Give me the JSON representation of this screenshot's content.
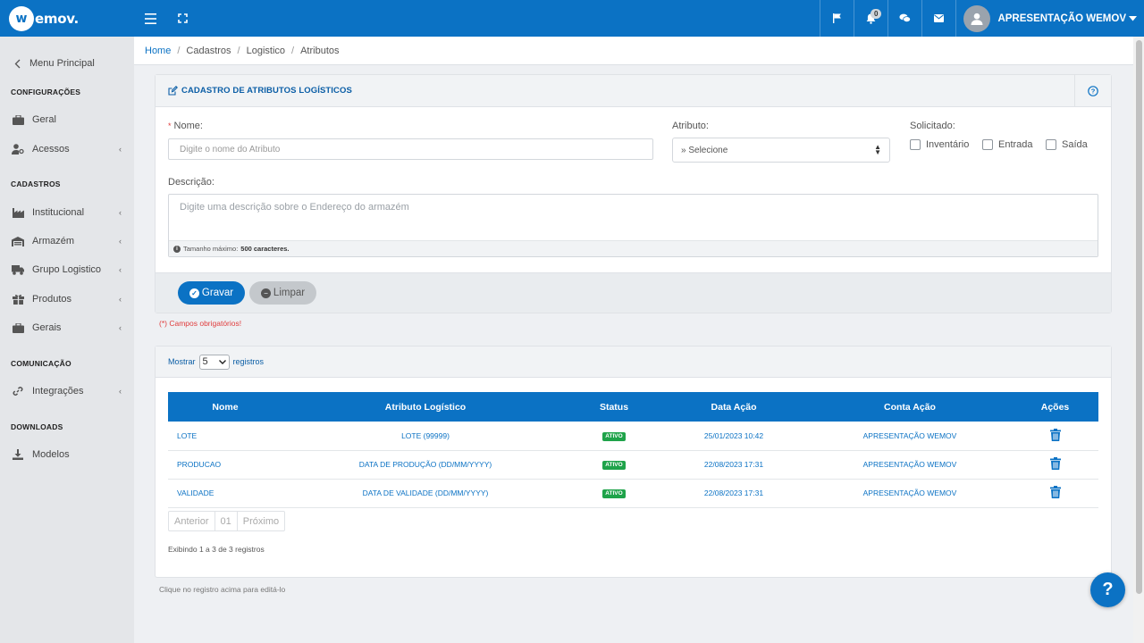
{
  "brand": {
    "logo_letter": "w",
    "logo_text": "emov."
  },
  "topbar": {
    "notifications_count": "0",
    "user_name": "APRESENTAÇÃO WEMOV",
    "icons": [
      "hamburger-icon",
      "expand-icon",
      "flag-icon",
      "bell-icon",
      "chat-icon",
      "envelope-icon",
      "user-icon",
      "caret-down-icon"
    ]
  },
  "sidebar": {
    "menu_principal": "Menu Principal",
    "sections": {
      "configuracoes": "CONFIGURAÇÕES",
      "cadastros": "CADASTROS",
      "comunicacao": "COMUNICAÇÃO",
      "downloads": "DOWNLOADS"
    },
    "items": {
      "geral": "Geral",
      "acessos": "Acessos",
      "institucional": "Institucional",
      "armazem": "Armazém",
      "grupo_logistico": "Grupo Logistico",
      "produtos": "Produtos",
      "gerais": "Gerais",
      "integracoes": "Integrações",
      "modelos": "Modelos"
    },
    "arrow": "‹"
  },
  "breadcrumb": {
    "home": "Home",
    "items": [
      "Cadastros",
      "Logistico",
      "Atributos"
    ],
    "sep": "/"
  },
  "form": {
    "title": "CADASTRO DE ATRIBUTOS LOGÍSTICOS",
    "required_mark": "*",
    "nome_label": "Nome:",
    "nome_placeholder": "Digite o nome do Atributo",
    "atributo_label": "Atributo:",
    "atributo_value": "» Selecione",
    "solicitado_label": "Solicitado:",
    "checkboxes": [
      "Inventário",
      "Entrada",
      "Saída"
    ],
    "descricao_label": "Descrição:",
    "descricao_placeholder": "Digite uma descrição sobre o Endereço do armazém",
    "info_glyph": "i",
    "max_size_label": "Tamanho máximo:",
    "max_size_value": "500 caracteres.",
    "gravar": "Gravar",
    "limpar": "Limpar",
    "required_note": "(*) Campos obrigatórios!"
  },
  "list": {
    "show_label": "Mostrar",
    "show_value": "5",
    "records_label": "registros",
    "columns": [
      "Nome",
      "Atributo Logístico",
      "Status",
      "Data Ação",
      "Conta Ação",
      "Ações"
    ],
    "rows": [
      {
        "nome": "LOTE",
        "atributo": "LOTE (99999)",
        "status": "ATIVO",
        "data": "25/01/2023 10:42",
        "conta": "APRESENTAÇÃO WEMOV"
      },
      {
        "nome": "PRODUCAO",
        "atributo": "DATA DE PRODUÇÃO (DD/MM/YYYY)",
        "status": "ATIVO",
        "data": "22/08/2023 17:31",
        "conta": "APRESENTAÇÃO WEMOV"
      },
      {
        "nome": "VALIDADE",
        "atributo": "DATA DE VALIDADE (DD/MM/YYYY)",
        "status": "ATIVO",
        "data": "22/08/2023 17:31",
        "conta": "APRESENTAÇÃO WEMOV"
      }
    ],
    "pager": {
      "prev": "Anterior",
      "page": "01",
      "next": "Próximo"
    },
    "info": "Exibindo 1 a 3 de 3 registros",
    "click_note": "Clique no registro acima para editá-lo"
  },
  "help_fab": "?",
  "colors": {
    "primary": "#0b72c4",
    "active_badge": "#1fa34a",
    "required": "#e03c3c"
  }
}
